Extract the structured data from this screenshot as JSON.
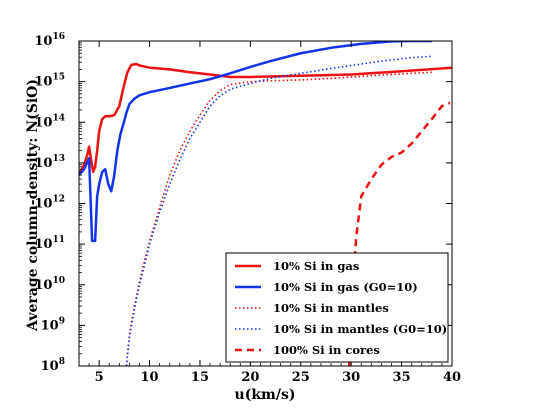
{
  "chart_data": {
    "type": "line",
    "xlabel": "u(km/s)",
    "ylabel": "Average column-density: N(SiO)",
    "xlim": [
      3,
      40
    ],
    "ylim": [
      100000000,
      10000000000000000
    ],
    "yscale": "log",
    "x_ticks": [
      "5",
      "10",
      "15",
      "20",
      "25",
      "30",
      "35",
      "40"
    ],
    "y_ticks": [
      {
        "base": "10",
        "exp": "8"
      },
      {
        "base": "10",
        "exp": "9"
      },
      {
        "base": "10",
        "exp": "10"
      },
      {
        "base": "10",
        "exp": "11"
      },
      {
        "base": "10",
        "exp": "12"
      },
      {
        "base": "10",
        "exp": "13"
      },
      {
        "base": "10",
        "exp": "14"
      },
      {
        "base": "10",
        "exp": "15"
      },
      {
        "base": "10",
        "exp": "16"
      }
    ],
    "legend_position": "lower right",
    "series": [
      {
        "name": "10% Si in gas",
        "color": "#ee1111",
        "style": "solid",
        "width": 2.5,
        "x": [
          3.0,
          3.5,
          3.8,
          4.0,
          4.2,
          4.4,
          4.6,
          4.8,
          5.0,
          5.3,
          5.6,
          6.0,
          6.5,
          7.0,
          7.4,
          7.8,
          8.2,
          8.7,
          9.0,
          10,
          12,
          14,
          16,
          18,
          20,
          25,
          30,
          35,
          40
        ],
        "y": [
          5000000000000.0,
          9000000000000.0,
          15000000000000.0,
          25000000000000.0,
          12000000000000.0,
          6000000000000.0,
          8000000000000.0,
          20000000000000.0,
          60000000000000.0,
          120000000000000.0,
          140000000000000.0,
          140000000000000.0,
          150000000000000.0,
          250000000000000.0,
          700000000000000.0,
          1700000000000000.0,
          2600000000000000.0,
          2700000000000000.0,
          2500000000000000.0,
          2200000000000000.0,
          2000000000000000.0,
          1700000000000000.0,
          1500000000000000.0,
          1300000000000000.0,
          1300000000000000.0,
          1400000000000000.0,
          1500000000000000.0,
          1800000000000000.0,
          2200000000000000.0
        ]
      },
      {
        "name": "10% Si in gas (G0=10)",
        "color": "#1133ee",
        "style": "solid",
        "width": 2.5,
        "x": [
          3.0,
          3.5,
          3.8,
          4.0,
          4.3,
          4.6,
          4.8,
          5.0,
          5.3,
          5.6,
          5.9,
          6.2,
          6.5,
          6.8,
          7.1,
          7.4,
          7.7,
          8.0,
          8.5,
          9.0,
          10,
          12,
          14,
          16,
          18,
          20,
          22,
          25,
          28,
          31,
          34,
          36,
          38
        ],
        "y": [
          5000000000000.0,
          7000000000000.0,
          10000000000000.0,
          13000000000000.0,
          120000000000.0,
          120000000000.0,
          1500000000000.0,
          3000000000000.0,
          6000000000000.0,
          7000000000000.0,
          3000000000000.0,
          2000000000000.0,
          5000000000000.0,
          20000000000000.0,
          50000000000000.0,
          90000000000000.0,
          170000000000000.0,
          280000000000000.0,
          380000000000000.0,
          460000000000000.0,
          550000000000000.0,
          700000000000000.0,
          900000000000000.0,
          1150000000000000.0,
          1600000000000000.0,
          2300000000000000.0,
          3200000000000000.0,
          5000000000000000.0,
          6800000000000000.0,
          8500000000000000.0,
          9800000000000000.0,
          1e+16,
          1e+16
        ]
      },
      {
        "name": "10% Si in mantles",
        "color": "#ee1111",
        "style": "dotted",
        "width": 1.6,
        "x": [
          7.7,
          8.0,
          8.5,
          9.0,
          9.5,
          10,
          11,
          12,
          13,
          14,
          15,
          16,
          17,
          18,
          20,
          22,
          25,
          28,
          30,
          33,
          36,
          38
        ],
        "y": [
          100000000.0,
          600000000.0,
          3000000000.0,
          12000000000.0,
          40000000000.0,
          120000000000.0,
          800000000000.0,
          5000000000000.0,
          20000000000000.0,
          60000000000000.0,
          150000000000000.0,
          350000000000000.0,
          600000000000000.0,
          850000000000000.0,
          1000000000000000.0,
          1050000000000000.0,
          1100000000000000.0,
          1200000000000000.0,
          1300000000000000.0,
          1450000000000000.0,
          1600000000000000.0,
          1700000000000000.0
        ]
      },
      {
        "name": "10% Si in mantles (G0=10)",
        "color": "#1133ee",
        "style": "dotted",
        "width": 1.6,
        "x": [
          7.7,
          8.0,
          8.5,
          9.0,
          9.5,
          10,
          11,
          12,
          13,
          14,
          15,
          16,
          17,
          18,
          20,
          22,
          25,
          28,
          30,
          33,
          36,
          38
        ],
        "y": [
          100000000.0,
          500000000.0,
          2500000000.0,
          10000000000.0,
          30000000000.0,
          100000000000.0,
          600000000000.0,
          3000000000000.0,
          12000000000000.0,
          40000000000000.0,
          100000000000000.0,
          250000000000000.0,
          450000000000000.0,
          650000000000000.0,
          900000000000000.0,
          1200000000000000.0,
          1600000000000000.0,
          2100000000000000.0,
          2500000000000000.0,
          3200000000000000.0,
          3900000000000000.0,
          4200000000000000.0
        ]
      },
      {
        "name": "100% Si in cores",
        "color": "#ee1111",
        "style": "dashed",
        "width": 2.5,
        "x": [
          29.8,
          30.0,
          30.5,
          31.0,
          32.0,
          33.0,
          34.0,
          35.0,
          36.0,
          37.0,
          38.0,
          39.0,
          39.8
        ],
        "y": [
          100000000.0,
          3000000000.0,
          150000000000.0,
          1500000000000.0,
          4000000000000.0,
          9000000000000.0,
          14000000000000.0,
          18000000000000.0,
          30000000000000.0,
          60000000000000.0,
          120000000000000.0,
          250000000000000.0,
          300000000000000.0
        ]
      }
    ]
  }
}
